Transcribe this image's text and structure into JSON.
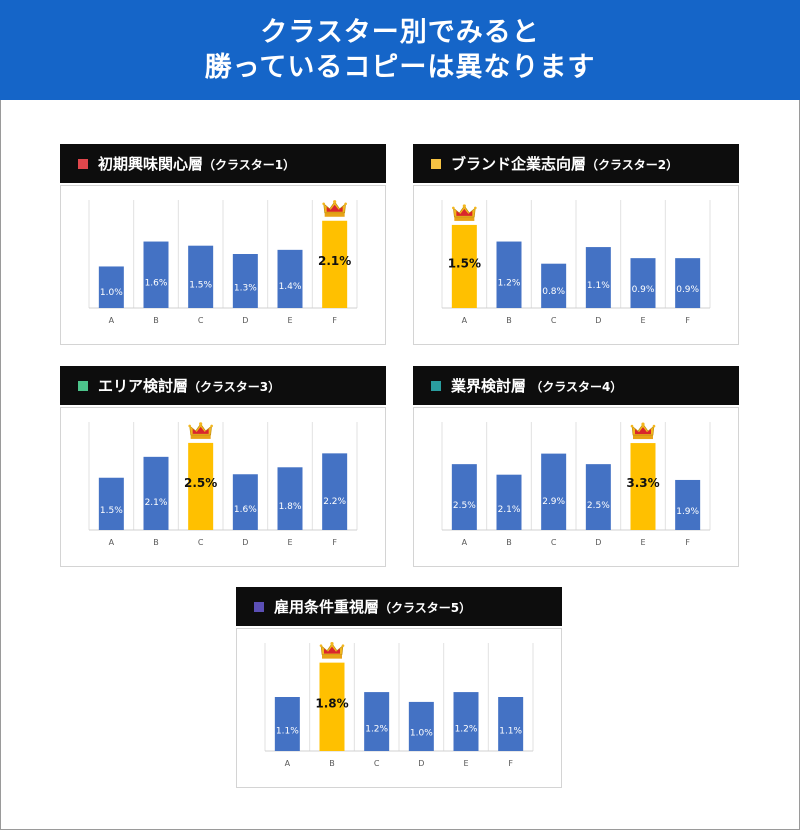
{
  "banner": {
    "line1": "クラスター別でみると",
    "line2": "勝っているコピーは異なります"
  },
  "colors": {
    "banner": "#1565c8",
    "bar": "#4472c4",
    "winner_bar": "#ffc000",
    "header_bg": "#0d0d0d"
  },
  "panels": [
    {
      "name": "初期興味関心層",
      "suffix": "（クラスター1）",
      "marker_color": "#e0474c"
    },
    {
      "name": "ブランド企業志向層",
      "suffix": "（クラスター2）",
      "marker_color": "#f6c343"
    },
    {
      "name": "エリア検討層",
      "suffix": "（クラスター3）",
      "marker_color": "#4cc38a"
    },
    {
      "name": "業界検討層",
      "suffix": " （クラスター4）",
      "marker_color": "#2a9d9f"
    },
    {
      "name": "雇用条件重視層",
      "suffix": "（クラスター5）",
      "marker_color": "#5b4fb5"
    }
  ],
  "chart_data": [
    {
      "type": "bar",
      "categories": [
        "A",
        "B",
        "C",
        "D",
        "E",
        "F"
      ],
      "values": [
        1.0,
        1.6,
        1.5,
        1.3,
        1.4,
        2.1
      ],
      "labels": [
        "1.0%",
        "1.6%",
        "1.5%",
        "1.3%",
        "1.4%",
        "2.1%"
      ],
      "winner_index": 5,
      "ylim": [
        0,
        2.6
      ]
    },
    {
      "type": "bar",
      "categories": [
        "A",
        "B",
        "C",
        "D",
        "E",
        "F"
      ],
      "values": [
        1.5,
        1.2,
        0.8,
        1.1,
        0.9,
        0.9
      ],
      "labels": [
        "1.5%",
        "1.2%",
        "0.8%",
        "1.1%",
        "0.9%",
        "0.9%"
      ],
      "winner_index": 0,
      "ylim": [
        0,
        1.95
      ]
    },
    {
      "type": "bar",
      "categories": [
        "A",
        "B",
        "C",
        "D",
        "E",
        "F"
      ],
      "values": [
        1.5,
        2.1,
        2.5,
        1.6,
        1.8,
        2.2
      ],
      "labels": [
        "1.5%",
        "2.1%",
        "2.5%",
        "1.6%",
        "1.8%",
        "2.2%"
      ],
      "winner_index": 2,
      "ylim": [
        0,
        3.1
      ]
    },
    {
      "type": "bar",
      "categories": [
        "A",
        "B",
        "C",
        "D",
        "E",
        "F"
      ],
      "values": [
        2.5,
        2.1,
        2.9,
        2.5,
        3.3,
        1.9
      ],
      "labels": [
        "2.5%",
        "2.1%",
        "2.9%",
        "2.5%",
        "3.3%",
        "1.9%"
      ],
      "winner_index": 4,
      "ylim": [
        0,
        4.1
      ]
    },
    {
      "type": "bar",
      "categories": [
        "A",
        "B",
        "C",
        "D",
        "E",
        "F"
      ],
      "values": [
        1.1,
        1.8,
        1.2,
        1.0,
        1.2,
        1.1
      ],
      "labels": [
        "1.1%",
        "1.8%",
        "1.2%",
        "1.0%",
        "1.2%",
        "1.1%"
      ],
      "winner_index": 1,
      "ylim": [
        0,
        2.2
      ]
    }
  ]
}
